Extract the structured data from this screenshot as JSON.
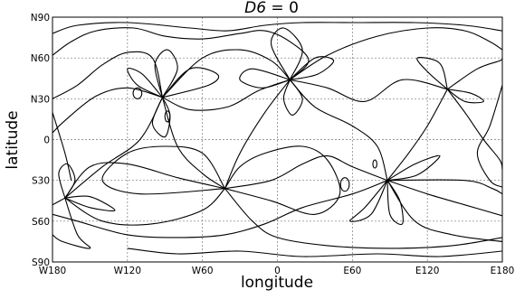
{
  "chart_data": {
    "type": "line",
    "title": "D6 = 0",
    "title_math": {
      "symbol": "D6",
      "rest": " = 0"
    },
    "xlabel": "longitude",
    "ylabel": "latitude",
    "xlim": [
      -180,
      180
    ],
    "ylim": [
      -90,
      90
    ],
    "grid": true,
    "x_ticks": [
      {
        "value": -180,
        "label": "W180"
      },
      {
        "value": -120,
        "label": "W120"
      },
      {
        "value": -60,
        "label": "W60"
      },
      {
        "value": 0,
        "label": "0"
      },
      {
        "value": 60,
        "label": "E60"
      },
      {
        "value": 120,
        "label": "E120"
      },
      {
        "value": 180,
        "label": "E180"
      }
    ],
    "y_ticks": [
      {
        "value": 90,
        "label": "N90"
      },
      {
        "value": 60,
        "label": "N60"
      },
      {
        "value": 30,
        "label": "N30"
      },
      {
        "value": 0,
        "label": "0"
      },
      {
        "value": -30,
        "label": "S30"
      },
      {
        "value": -60,
        "label": "S60"
      },
      {
        "value": -90,
        "label": "S90"
      }
    ],
    "nodes": [
      {
        "lon": -92,
        "lat": 31
      },
      {
        "lon": 10,
        "lat": 44
      },
      {
        "lon": 88,
        "lat": -30
      },
      {
        "lon": -170,
        "lat": -43
      },
      {
        "lon": 136,
        "lat": 37
      },
      {
        "lon": -42,
        "lat": -36
      }
    ],
    "series": [
      {
        "points": [
          [
            -180,
            62
          ],
          [
            -165,
            72
          ],
          [
            -145,
            80
          ],
          [
            -115,
            82
          ],
          [
            -90,
            76
          ],
          [
            -60,
            74
          ],
          [
            -30,
            78
          ],
          [
            -10,
            80
          ],
          [
            10,
            72
          ],
          [
            25,
            58
          ],
          [
            10,
            44
          ]
        ]
      },
      {
        "points": [
          [
            10,
            44
          ],
          [
            40,
            62
          ],
          [
            80,
            76
          ],
          [
            120,
            82
          ],
          [
            150,
            80
          ],
          [
            170,
            72
          ],
          [
            180,
            66
          ]
        ]
      },
      {
        "points": [
          [
            -180,
            78
          ],
          [
            -160,
            84
          ],
          [
            -120,
            86
          ],
          [
            -70,
            82
          ],
          [
            -40,
            80
          ],
          [
            -10,
            84
          ],
          [
            20,
            86
          ],
          [
            60,
            86
          ],
          [
            110,
            86
          ],
          [
            150,
            84
          ],
          [
            180,
            80
          ]
        ]
      },
      {
        "points": [
          [
            -180,
            30
          ],
          [
            -160,
            40
          ],
          [
            -140,
            55
          ],
          [
            -120,
            64
          ],
          [
            -100,
            60
          ],
          [
            -92,
            31
          ]
        ]
      },
      {
        "points": [
          [
            -92,
            31
          ],
          [
            -60,
            60
          ],
          [
            -30,
            66
          ],
          [
            -5,
            58
          ],
          [
            10,
            44
          ]
        ]
      },
      {
        "points": [
          [
            -92,
            31
          ],
          [
            -120,
            38
          ],
          [
            -145,
            32
          ],
          [
            -170,
            14
          ],
          [
            -180,
            5
          ]
        ]
      },
      {
        "points": [
          [
            -92,
            31
          ],
          [
            -70,
            22
          ],
          [
            -40,
            24
          ],
          [
            -15,
            36
          ],
          [
            10,
            44
          ]
        ]
      },
      {
        "points": [
          [
            -92,
            31
          ],
          [
            -110,
            0
          ],
          [
            -140,
            -20
          ],
          [
            -170,
            -43
          ]
        ]
      },
      {
        "points": [
          [
            -92,
            31
          ],
          [
            -80,
            -5
          ],
          [
            -60,
            -25
          ],
          [
            -42,
            -36
          ]
        ]
      },
      {
        "points": [
          [
            -92,
            31
          ],
          [
            -55,
            40
          ],
          [
            -48,
            48
          ],
          [
            -70,
            52
          ],
          [
            -92,
            31
          ]
        ]
      },
      {
        "points": [
          [
            -92,
            31
          ],
          [
            -108,
            48
          ],
          [
            -120,
            52
          ],
          [
            -112,
            40
          ],
          [
            -92,
            31
          ]
        ]
      },
      {
        "points": [
          [
            -92,
            31
          ],
          [
            -98,
            55
          ],
          [
            -88,
            66
          ],
          [
            -80,
            52
          ],
          [
            -92,
            31
          ]
        ]
      },
      {
        "points": [
          [
            -92,
            31
          ],
          [
            -100,
            12
          ],
          [
            -90,
            2
          ],
          [
            -86,
            18
          ],
          [
            -92,
            31
          ]
        ]
      },
      {
        "points": [
          [
            10,
            44
          ],
          [
            30,
            24
          ],
          [
            60,
            10
          ],
          [
            80,
            -5
          ],
          [
            88,
            -30
          ]
        ]
      },
      {
        "points": [
          [
            10,
            44
          ],
          [
            -10,
            20
          ],
          [
            -30,
            -10
          ],
          [
            -42,
            -36
          ]
        ]
      },
      {
        "points": [
          [
            10,
            44
          ],
          [
            40,
            38
          ],
          [
            70,
            28
          ],
          [
            100,
            44
          ],
          [
            136,
            37
          ]
        ]
      },
      {
        "points": [
          [
            10,
            44
          ],
          [
            5,
            30
          ],
          [
            12,
            18
          ],
          [
            20,
            30
          ],
          [
            10,
            44
          ]
        ]
      },
      {
        "points": [
          [
            10,
            44
          ],
          [
            -20,
            52
          ],
          [
            -30,
            44
          ],
          [
            -12,
            38
          ],
          [
            10,
            44
          ]
        ]
      },
      {
        "points": [
          [
            10,
            44
          ],
          [
            30,
            60
          ],
          [
            45,
            58
          ],
          [
            32,
            48
          ],
          [
            10,
            44
          ]
        ]
      },
      {
        "points": [
          [
            10,
            44
          ],
          [
            -5,
            70
          ],
          [
            5,
            82
          ],
          [
            20,
            66
          ],
          [
            10,
            44
          ]
        ]
      },
      {
        "points": [
          [
            136,
            37
          ],
          [
            150,
            20
          ],
          [
            165,
            0
          ],
          [
            178,
            -15
          ],
          [
            180,
            -22
          ]
        ]
      },
      {
        "points": [
          [
            136,
            37
          ],
          [
            120,
            10
          ],
          [
            105,
            -10
          ],
          [
            88,
            -30
          ]
        ]
      },
      {
        "points": [
          [
            136,
            37
          ],
          [
            160,
            52
          ],
          [
            178,
            58
          ],
          [
            180,
            60
          ]
        ]
      },
      {
        "points": [
          [
            136,
            37
          ],
          [
            155,
            34
          ],
          [
            165,
            28
          ],
          [
            150,
            28
          ],
          [
            136,
            37
          ]
        ]
      },
      {
        "points": [
          [
            136,
            37
          ],
          [
            120,
            50
          ],
          [
            112,
            60
          ],
          [
            130,
            56
          ],
          [
            136,
            37
          ]
        ]
      },
      {
        "points": [
          [
            88,
            -30
          ],
          [
            120,
            -40
          ],
          [
            150,
            -48
          ],
          [
            180,
            -56
          ]
        ]
      },
      {
        "points": [
          [
            88,
            -30
          ],
          [
            60,
            -40
          ],
          [
            20,
            -50
          ],
          [
            -10,
            -62
          ],
          [
            -42,
            -70
          ],
          [
            -80,
            -72
          ],
          [
            -120,
            -70
          ],
          [
            -160,
            -60
          ],
          [
            -180,
            -55
          ]
        ]
      },
      {
        "points": [
          [
            88,
            -30
          ],
          [
            60,
            -20
          ],
          [
            40,
            -12
          ],
          [
            20,
            -18
          ],
          [
            -5,
            -30
          ],
          [
            -42,
            -36
          ]
        ]
      },
      {
        "points": [
          [
            88,
            -30
          ],
          [
            110,
            -60
          ],
          [
            140,
            -70
          ],
          [
            180,
            -75
          ]
        ]
      },
      {
        "points": [
          [
            88,
            -30
          ],
          [
            110,
            -18
          ],
          [
            130,
            -12
          ],
          [
            112,
            -26
          ],
          [
            88,
            -30
          ]
        ]
      },
      {
        "points": [
          [
            88,
            -30
          ],
          [
            70,
            -50
          ],
          [
            58,
            -60
          ],
          [
            75,
            -55
          ],
          [
            88,
            -30
          ]
        ]
      },
      {
        "points": [
          [
            88,
            -30
          ],
          [
            90,
            -55
          ],
          [
            100,
            -62
          ],
          [
            98,
            -45
          ],
          [
            88,
            -30
          ]
        ]
      },
      {
        "points": [
          [
            88,
            -30
          ],
          [
            150,
            -30
          ],
          [
            172,
            -36
          ],
          [
            180,
            -40
          ]
        ]
      },
      {
        "points": [
          [
            -170,
            -43
          ],
          [
            -150,
            -20
          ],
          [
            -120,
            -18
          ],
          [
            -80,
            -28
          ],
          [
            -42,
            -36
          ]
        ]
      },
      {
        "points": [
          [
            -170,
            -43
          ],
          [
            -140,
            -60
          ],
          [
            -100,
            -62
          ],
          [
            -60,
            -52
          ],
          [
            -42,
            -36
          ]
        ]
      },
      {
        "points": [
          [
            -170,
            -43
          ],
          [
            -150,
            -50
          ],
          [
            -130,
            -52
          ],
          [
            -150,
            -42
          ],
          [
            -170,
            -43
          ]
        ]
      },
      {
        "points": [
          [
            -170,
            -43
          ],
          [
            -175,
            -25
          ],
          [
            -168,
            -18
          ],
          [
            -162,
            -30
          ],
          [
            -170,
            -43
          ]
        ]
      },
      {
        "points": [
          [
            -170,
            -43
          ],
          [
            -180,
            -48
          ]
        ]
      },
      {
        "points": [
          [
            -170,
            -43
          ],
          [
            -160,
            -70
          ],
          [
            -150,
            -80
          ],
          [
            -172,
            -75
          ],
          [
            -180,
            -70
          ]
        ]
      },
      {
        "points": [
          [
            -42,
            -36
          ],
          [
            -20,
            -60
          ],
          [
            0,
            -72
          ],
          [
            40,
            -78
          ],
          [
            90,
            -80
          ],
          [
            140,
            -78
          ],
          [
            180,
            -72
          ]
        ]
      },
      {
        "points": [
          [
            -42,
            -36
          ],
          [
            -30,
            -20
          ],
          [
            -10,
            -10
          ],
          [
            20,
            -5
          ],
          [
            40,
            -15
          ],
          [
            50,
            -40
          ],
          [
            30,
            -55
          ],
          [
            -5,
            -45
          ],
          [
            -42,
            -36
          ]
        ]
      },
      {
        "points": [
          [
            -42,
            -36
          ],
          [
            -60,
            -10
          ],
          [
            -90,
            -5
          ],
          [
            -120,
            -10
          ],
          [
            -140,
            -30
          ],
          [
            -110,
            -40
          ],
          [
            -42,
            -36
          ]
        ]
      },
      {
        "points": [
          [
            -180,
            20
          ],
          [
            -170,
            -10
          ],
          [
            -165,
            -30
          ]
        ]
      },
      {
        "points": [
          [
            180,
            40
          ],
          [
            170,
            10
          ],
          [
            160,
            -10
          ],
          [
            170,
            -30
          ],
          [
            180,
            -35
          ]
        ]
      },
      {
        "points": [
          [
            -120,
            -80
          ],
          [
            -80,
            -84
          ],
          [
            -30,
            -82
          ],
          [
            20,
            -86
          ],
          [
            80,
            -84
          ],
          [
            130,
            -86
          ],
          [
            180,
            -82
          ]
        ]
      }
    ],
    "small_loops": [
      {
        "lon": -112,
        "lat": 34,
        "rlon": 3.5,
        "rlat": 4
      },
      {
        "lon": -88,
        "lat": 17,
        "rlon": 2,
        "rlat": 4
      },
      {
        "lon": 54,
        "lat": -33,
        "rlon": 3.5,
        "rlat": 5
      },
      {
        "lon": 78,
        "lat": -18,
        "rlon": 1.6,
        "rlat": 3
      }
    ]
  }
}
